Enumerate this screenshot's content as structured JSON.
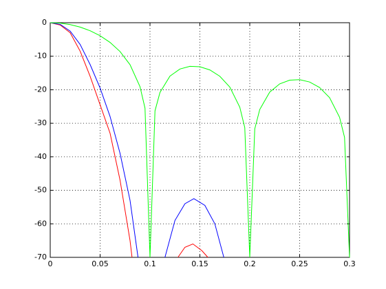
{
  "chart_data": {
    "type": "line",
    "xlim": [
      0,
      0.3
    ],
    "xticks": [
      0,
      0.05,
      0.1,
      0.15,
      0.2,
      0.25,
      0.3
    ],
    "ylim": [
      -70,
      0
    ],
    "yticks": [
      -70,
      -60,
      -50,
      -40,
      -30,
      -20,
      -10,
      0
    ],
    "grid": true,
    "series": [
      {
        "color": "#ff0000",
        "x": [
          0,
          0.01,
          0.02,
          0.03,
          0.04,
          0.05,
          0.06,
          0.07,
          0.08,
          0.082,
          0.1,
          0.128,
          0.135,
          0.143,
          0.152,
          0.158
        ],
        "values": [
          0,
          -0.7,
          -3,
          -8.5,
          -16,
          -24.5,
          -33,
          -47,
          -65,
          -70,
          null,
          -70,
          -67,
          -66,
          -68,
          -70
        ]
      },
      {
        "color": "#0000ff",
        "x": [
          0,
          0.01,
          0.02,
          0.03,
          0.04,
          0.05,
          0.06,
          0.07,
          0.08,
          0.088,
          0.1,
          0.115,
          0.125,
          0.135,
          0.144,
          0.155,
          0.165,
          0.174
        ],
        "values": [
          0,
          -0.5,
          -2.5,
          -6.5,
          -12.5,
          -19.5,
          -28,
          -39,
          -53,
          -70,
          null,
          -70,
          -59,
          -54,
          -52.5,
          -54.5,
          -60,
          -70
        ]
      },
      {
        "color": "#00ff00",
        "x": [
          0,
          0.01,
          0.02,
          0.03,
          0.04,
          0.05,
          0.06,
          0.07,
          0.08,
          0.09,
          0.095,
          0.1,
          0.105,
          0.11,
          0.12,
          0.13,
          0.14,
          0.15,
          0.16,
          0.17,
          0.18,
          0.19,
          0.195,
          0.2,
          0.205,
          0.21,
          0.22,
          0.23,
          0.24,
          0.25,
          0.26,
          0.27,
          0.28,
          0.29,
          0.295,
          0.3
        ],
        "values": [
          0,
          -0.14,
          -0.57,
          -1.31,
          -2.4,
          -3.89,
          -5.89,
          -8.61,
          -12.53,
          -19.11,
          -25.5,
          -70,
          -26.3,
          -20.8,
          -15.93,
          -13.82,
          -13.02,
          -13.14,
          -14.09,
          -15.98,
          -19.2,
          -25.2,
          -31.3,
          -70,
          -31.7,
          -25.9,
          -20.7,
          -18.25,
          -17.14,
          -16.99,
          -17.69,
          -19.34,
          -22.35,
          -28.2,
          -34.2,
          -70
        ]
      }
    ]
  }
}
